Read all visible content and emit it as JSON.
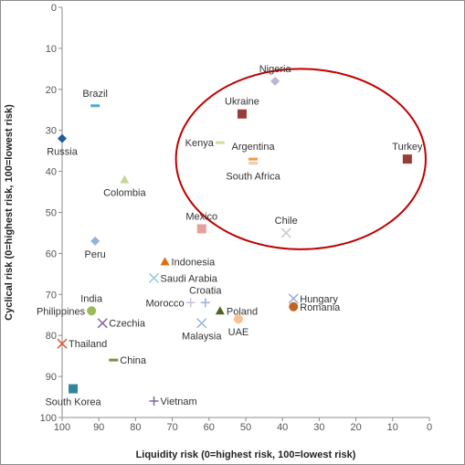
{
  "chart_data": {
    "type": "scatter",
    "title": "",
    "xlabel": "Liquidity risk (0=highest risk, 100=lowest risk)",
    "ylabel": "Cyclical risk (0=highest risk, 100=lowest risk)",
    "xlim": [
      100,
      0
    ],
    "ylim": [
      100,
      0
    ],
    "x_reversed": true,
    "y_reversed": true,
    "xticks": [
      "100",
      "90",
      "80",
      "70",
      "60",
      "50",
      "40",
      "30",
      "20",
      "10",
      "0"
    ],
    "yticks": [
      "0",
      "10",
      "20",
      "30",
      "40",
      "50",
      "60",
      "70",
      "80",
      "90",
      "100"
    ],
    "grid": false,
    "legend": "none",
    "points": [
      {
        "label": "Nigeria",
        "x": 42,
        "y": 18,
        "marker": "diamond",
        "color": "#b9b5d8",
        "label_pos": "above"
      },
      {
        "label": "Ukraine",
        "x": 51,
        "y": 26,
        "marker": "square",
        "color": "#983c38",
        "label_pos": "above"
      },
      {
        "label": "Turkey",
        "x": 6,
        "y": 37,
        "marker": "square",
        "color": "#983c38",
        "label_pos": "above"
      },
      {
        "label": "Kenya",
        "x": 57,
        "y": 33,
        "marker": "dash",
        "color": "#d3dc9e",
        "label_pos": "left"
      },
      {
        "label": "Argentina",
        "x": 48,
        "y": 37,
        "marker": "dash",
        "color": "#f79646",
        "label_pos": "above"
      },
      {
        "label": "South Africa",
        "x": 48,
        "y": 38,
        "marker": "dash",
        "color": "#f5c8a8",
        "label_pos": "below"
      },
      {
        "label": "Brazil",
        "x": 91,
        "y": 24,
        "marker": "dash",
        "color": "#4bacc6",
        "label_pos": "above"
      },
      {
        "label": "Russia",
        "x": 100,
        "y": 32,
        "marker": "diamond",
        "color": "#1f5c99",
        "label_pos": "below"
      },
      {
        "label": "Colombia",
        "x": 83,
        "y": 42,
        "marker": "triangle",
        "color": "#c3d69b",
        "label_pos": "below"
      },
      {
        "label": "Mexico",
        "x": 62,
        "y": 54,
        "marker": "square",
        "color": "#e6a09c",
        "label_pos": "above"
      },
      {
        "label": "Chile",
        "x": 39,
        "y": 55,
        "marker": "x",
        "color": "#c9c4dc",
        "label_pos": "above"
      },
      {
        "label": "Peru",
        "x": 91,
        "y": 57,
        "marker": "diamond",
        "color": "#95b3d7",
        "label_pos": "below"
      },
      {
        "label": "Indonesia",
        "x": 72,
        "y": 62,
        "marker": "triangle",
        "color": "#e36c0a",
        "label_pos": "right"
      },
      {
        "label": "Saudi Arabia",
        "x": 75,
        "y": 66,
        "marker": "x",
        "color": "#92cddc",
        "label_pos": "right"
      },
      {
        "label": "Croatia",
        "x": 61,
        "y": 72,
        "marker": "plus",
        "color": "#95b3d7",
        "label_pos": "above"
      },
      {
        "label": "Morocco",
        "x": 65,
        "y": 72,
        "marker": "plus",
        "color": "#c9c4dc",
        "label_pos": "left"
      },
      {
        "label": "Hungary",
        "x": 37,
        "y": 71,
        "marker": "x",
        "color": "#95b3d7",
        "label_pos": "right"
      },
      {
        "label": "Romania",
        "x": 37,
        "y": 73,
        "marker": "circle",
        "color": "#c0651f",
        "label_pos": "right"
      },
      {
        "label": "Poland",
        "x": 57,
        "y": 74,
        "marker": "triangle",
        "color": "#4f6228",
        "label_pos": "right"
      },
      {
        "label": "India",
        "x": 92,
        "y": 74,
        "marker": "diamond",
        "color": "#4f6228",
        "label_pos": "above"
      },
      {
        "label": "Philippines",
        "x": 92,
        "y": 74,
        "marker": "circle",
        "color": "#9bbb59",
        "label_pos": "left"
      },
      {
        "label": "UAE",
        "x": 52,
        "y": 76,
        "marker": "circle",
        "color": "#fac090",
        "label_pos": "below"
      },
      {
        "label": "Malaysia",
        "x": 62,
        "y": 77,
        "marker": "x",
        "color": "#95b3d7",
        "label_pos": "below"
      },
      {
        "label": "Czechia",
        "x": 89,
        "y": 77,
        "marker": "x",
        "color": "#8064a2",
        "label_pos": "right"
      },
      {
        "label": "Thailand",
        "x": 100,
        "y": 82,
        "marker": "x",
        "color": "#e0593a",
        "label_pos": "right"
      },
      {
        "label": "China",
        "x": 86,
        "y": 86,
        "marker": "dash",
        "color": "#77933c",
        "label_pos": "right"
      },
      {
        "label": "South Korea",
        "x": 97,
        "y": 93,
        "marker": "square",
        "color": "#31859c",
        "label_pos": "below"
      },
      {
        "label": "Vietnam",
        "x": 75,
        "y": 96,
        "marker": "plus",
        "color": "#8064a2",
        "label_pos": "right"
      }
    ],
    "annotation": {
      "shape": "ellipse",
      "color": "#c00000",
      "x_center": 35,
      "y_center": 37,
      "x_radius": 34,
      "y_radius": 22
    }
  }
}
